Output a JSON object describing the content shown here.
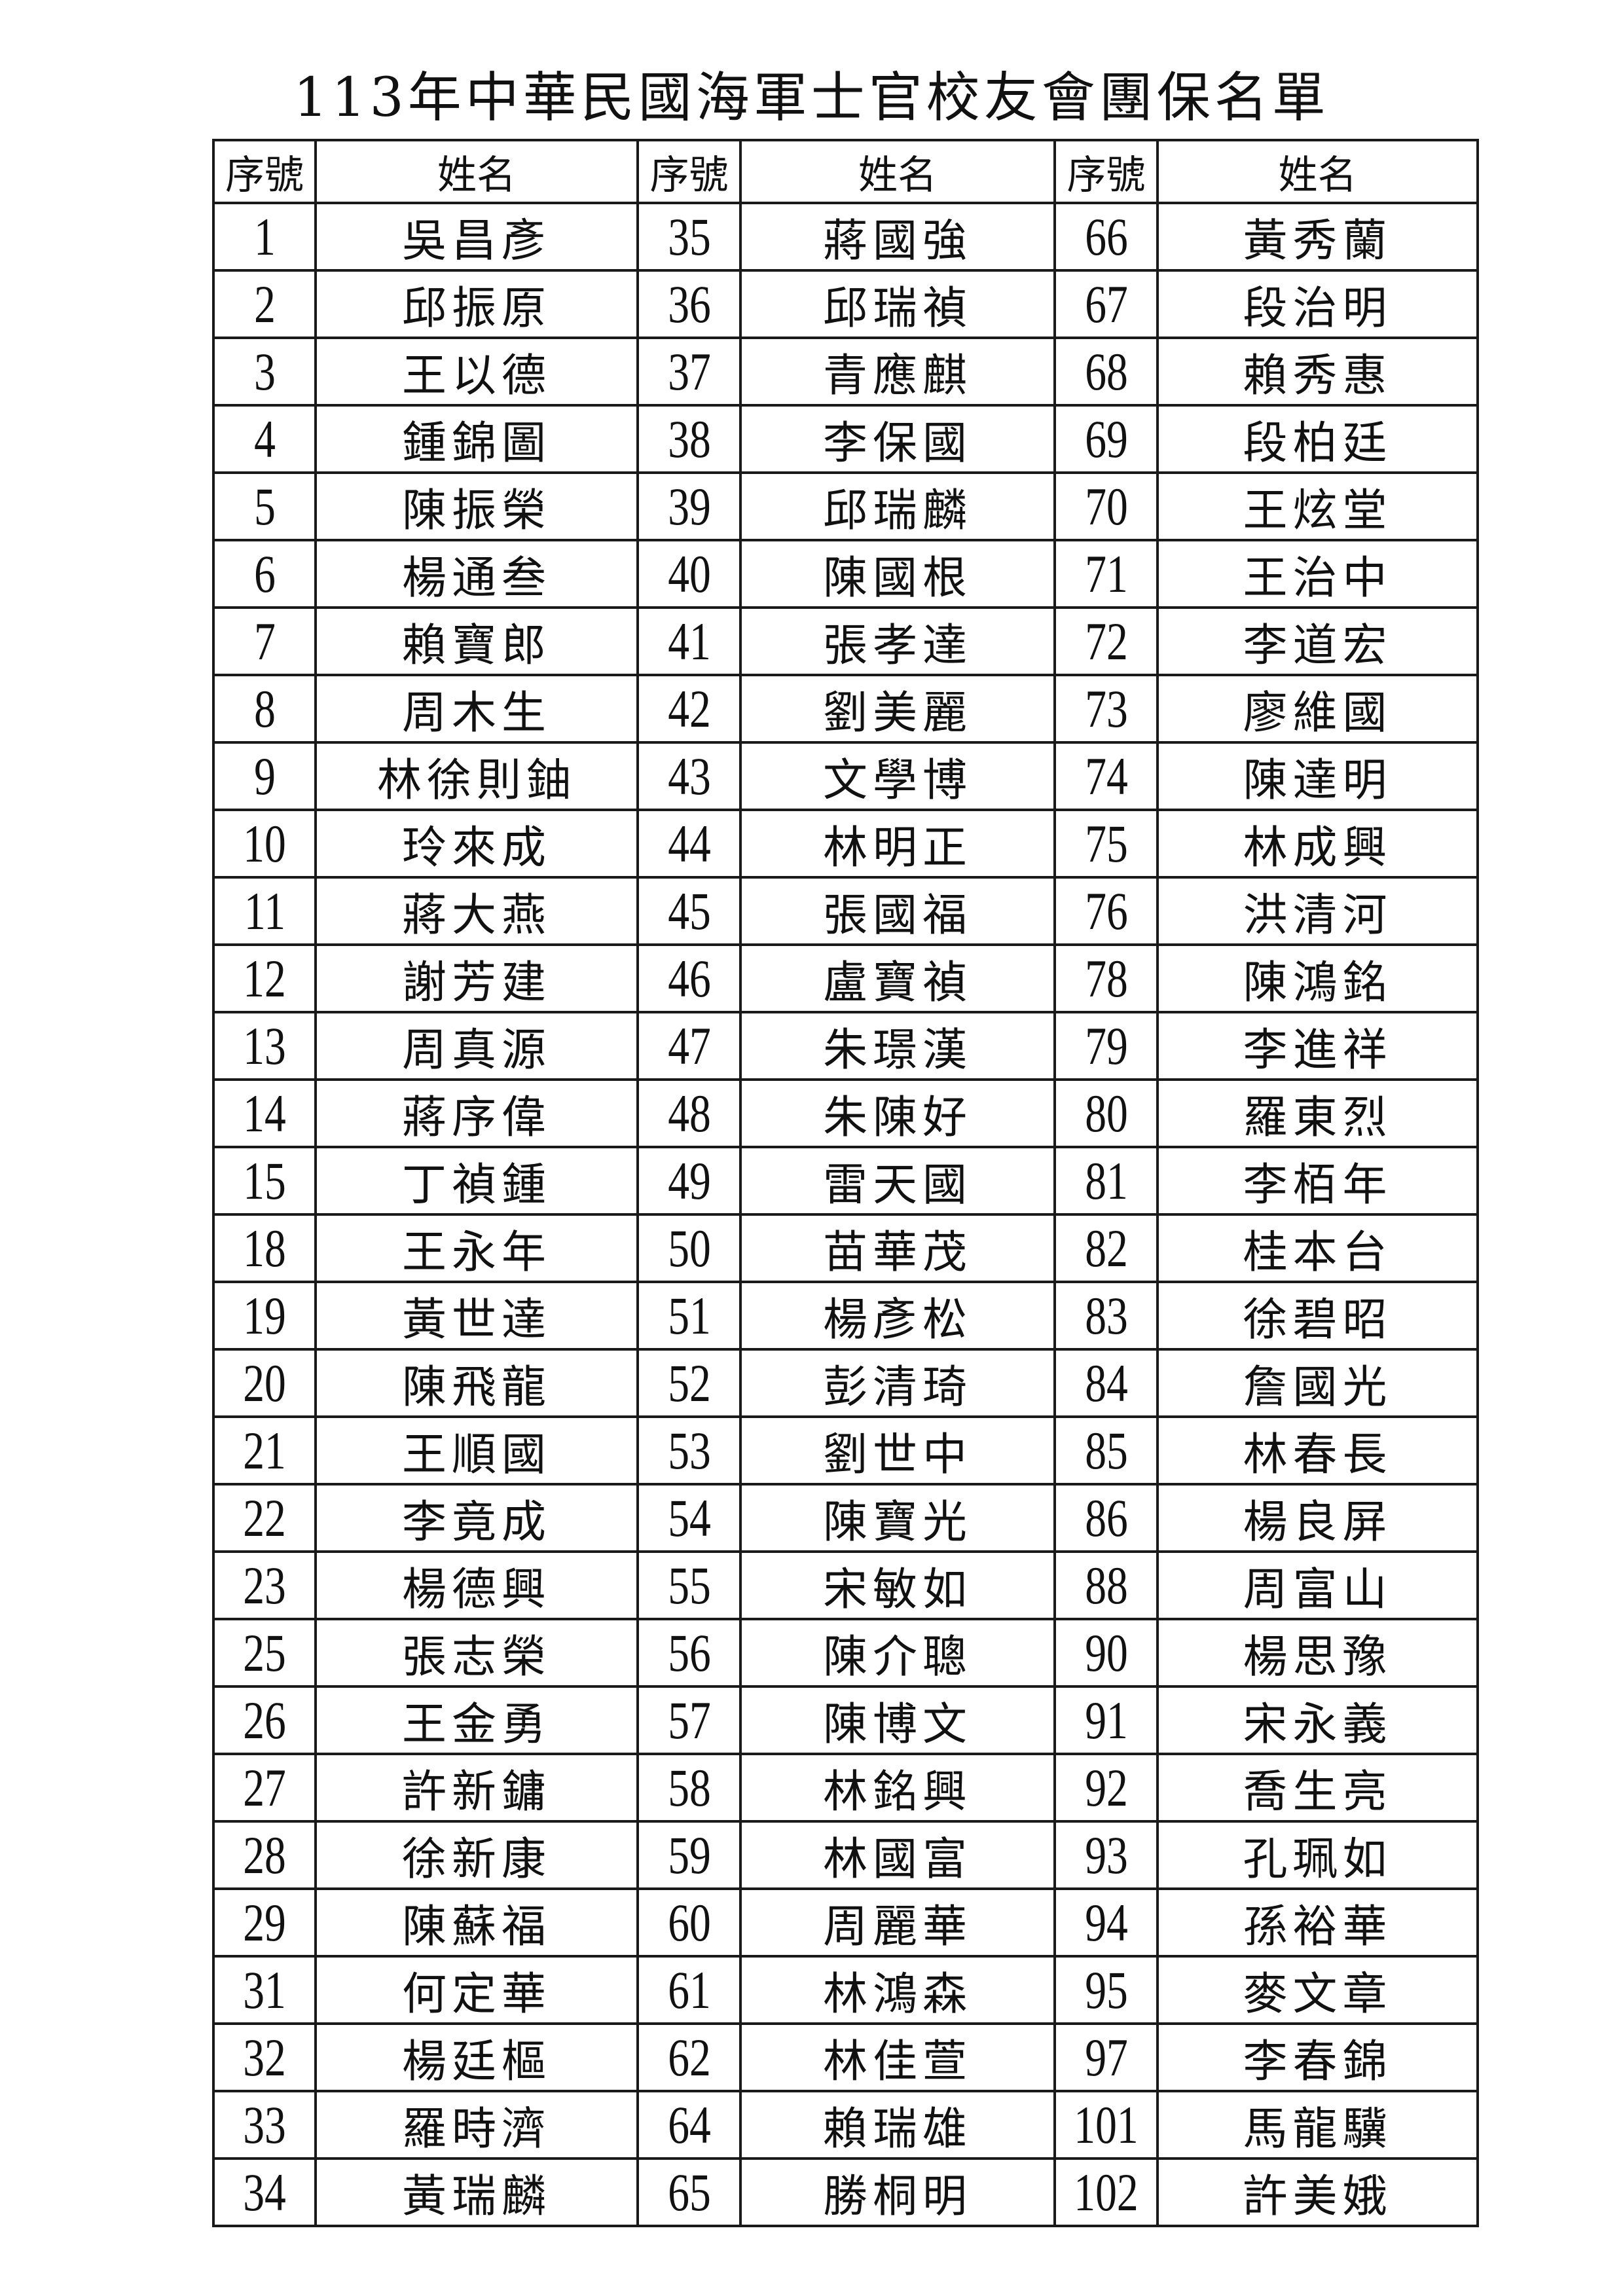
{
  "title": "113年中華民國海軍士官校友會團保名單",
  "headers": {
    "seq": "序號",
    "name": "姓名"
  },
  "columns": [
    {
      "rows": [
        {
          "seq": "1",
          "name": "吳昌彥"
        },
        {
          "seq": "2",
          "name": "邱振原"
        },
        {
          "seq": "3",
          "name": "王以德"
        },
        {
          "seq": "4",
          "name": "鍾錦圖"
        },
        {
          "seq": "5",
          "name": "陳振榮"
        },
        {
          "seq": "6",
          "name": "楊通叁"
        },
        {
          "seq": "7",
          "name": "賴寶郎"
        },
        {
          "seq": "8",
          "name": "周木生"
        },
        {
          "seq": "9",
          "name": "林徐則鈾"
        },
        {
          "seq": "10",
          "name": "玲來成"
        },
        {
          "seq": "11",
          "name": "蔣大燕"
        },
        {
          "seq": "12",
          "name": "謝芳建"
        },
        {
          "seq": "13",
          "name": "周真源"
        },
        {
          "seq": "14",
          "name": "蔣序偉"
        },
        {
          "seq": "15",
          "name": "丁禎鍾"
        },
        {
          "seq": "18",
          "name": "王永年"
        },
        {
          "seq": "19",
          "name": "黃世達"
        },
        {
          "seq": "20",
          "name": "陳飛龍"
        },
        {
          "seq": "21",
          "name": "王順國"
        },
        {
          "seq": "22",
          "name": "李竟成"
        },
        {
          "seq": "23",
          "name": "楊德興"
        },
        {
          "seq": "25",
          "name": "張志榮"
        },
        {
          "seq": "26",
          "name": "王金勇"
        },
        {
          "seq": "27",
          "name": "許新鏞"
        },
        {
          "seq": "28",
          "name": "徐新康"
        },
        {
          "seq": "29",
          "name": "陳蘇福"
        },
        {
          "seq": "31",
          "name": "何定華"
        },
        {
          "seq": "32",
          "name": "楊廷樞"
        },
        {
          "seq": "33",
          "name": "羅時濟"
        },
        {
          "seq": "34",
          "name": "黃瑞麟"
        }
      ]
    },
    {
      "rows": [
        {
          "seq": "35",
          "name": "蔣國強"
        },
        {
          "seq": "36",
          "name": "邱瑞禎"
        },
        {
          "seq": "37",
          "name": "青應麒"
        },
        {
          "seq": "38",
          "name": "李保國"
        },
        {
          "seq": "39",
          "name": "邱瑞麟"
        },
        {
          "seq": "40",
          "name": "陳國根"
        },
        {
          "seq": "41",
          "name": "張孝達"
        },
        {
          "seq": "42",
          "name": "劉美麗"
        },
        {
          "seq": "43",
          "name": "文學博"
        },
        {
          "seq": "44",
          "name": "林明正"
        },
        {
          "seq": "45",
          "name": "張國福"
        },
        {
          "seq": "46",
          "name": "盧寶禎"
        },
        {
          "seq": "47",
          "name": "朱璟漢"
        },
        {
          "seq": "48",
          "name": "朱陳好"
        },
        {
          "seq": "49",
          "name": "雷天國"
        },
        {
          "seq": "50",
          "name": "苗華茂"
        },
        {
          "seq": "51",
          "name": "楊彥松"
        },
        {
          "seq": "52",
          "name": "彭清琦"
        },
        {
          "seq": "53",
          "name": "劉世中"
        },
        {
          "seq": "54",
          "name": "陳寶光"
        },
        {
          "seq": "55",
          "name": "宋敏如"
        },
        {
          "seq": "56",
          "name": "陳介聰"
        },
        {
          "seq": "57",
          "name": "陳博文"
        },
        {
          "seq": "58",
          "name": "林銘興"
        },
        {
          "seq": "59",
          "name": "林國富"
        },
        {
          "seq": "60",
          "name": "周麗華"
        },
        {
          "seq": "61",
          "name": "林鴻森"
        },
        {
          "seq": "62",
          "name": "林佳萱"
        },
        {
          "seq": "64",
          "name": "賴瑞雄"
        },
        {
          "seq": "65",
          "name": "勝桐明"
        }
      ]
    },
    {
      "rows": [
        {
          "seq": "66",
          "name": "黃秀蘭"
        },
        {
          "seq": "67",
          "name": "段治明"
        },
        {
          "seq": "68",
          "name": "賴秀惠"
        },
        {
          "seq": "69",
          "name": "段柏廷"
        },
        {
          "seq": "70",
          "name": "王炫堂"
        },
        {
          "seq": "71",
          "name": "王治中"
        },
        {
          "seq": "72",
          "name": "李道宏"
        },
        {
          "seq": "73",
          "name": "廖維國"
        },
        {
          "seq": "74",
          "name": "陳達明"
        },
        {
          "seq": "75",
          "name": "林成興"
        },
        {
          "seq": "76",
          "name": "洪清河"
        },
        {
          "seq": "78",
          "name": "陳鴻銘"
        },
        {
          "seq": "79",
          "name": "李進祥"
        },
        {
          "seq": "80",
          "name": "羅東烈"
        },
        {
          "seq": "81",
          "name": "李栢年"
        },
        {
          "seq": "82",
          "name": "桂本台"
        },
        {
          "seq": "83",
          "name": "徐碧昭"
        },
        {
          "seq": "84",
          "name": "詹國光"
        },
        {
          "seq": "85",
          "name": "林春長"
        },
        {
          "seq": "86",
          "name": "楊良屏"
        },
        {
          "seq": "88",
          "name": "周富山"
        },
        {
          "seq": "90",
          "name": "楊思豫"
        },
        {
          "seq": "91",
          "name": "宋永義"
        },
        {
          "seq": "92",
          "name": "喬生亮"
        },
        {
          "seq": "93",
          "name": "孔珮如"
        },
        {
          "seq": "94",
          "name": "孫裕華"
        },
        {
          "seq": "95",
          "name": "麥文章"
        },
        {
          "seq": "97",
          "name": "李春錦"
        },
        {
          "seq": "101",
          "name": "馬龍驥"
        },
        {
          "seq": "102",
          "name": "許美娥"
        }
      ]
    }
  ]
}
